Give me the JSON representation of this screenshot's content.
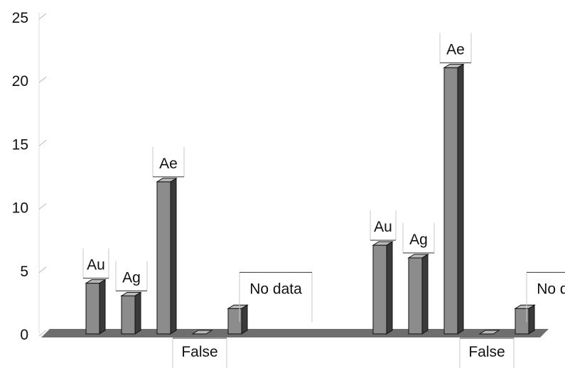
{
  "chart_data": {
    "type": "bar",
    "title": "",
    "xlabel": "",
    "ylabel": "",
    "ylim": [
      0,
      25
    ],
    "yticks": [
      0,
      5,
      10,
      15,
      20,
      25
    ],
    "grid": false,
    "groups": [
      {
        "name": "",
        "bars": [
          {
            "label": "Au",
            "value": 4
          },
          {
            "label": "Ag",
            "value": 3
          },
          {
            "label": "Ae",
            "value": 12
          },
          {
            "label": "False",
            "value": 0
          },
          {
            "label": "No data",
            "value": 2
          }
        ]
      },
      {
        "name": "",
        "bars": [
          {
            "label": "Au",
            "value": 7
          },
          {
            "label": "Ag",
            "value": 6
          },
          {
            "label": "Ae",
            "value": 21
          },
          {
            "label": "False",
            "value": 0
          },
          {
            "label": "No data",
            "value": 2
          }
        ]
      }
    ],
    "colors": {
      "bar_front": "#8c8c8c",
      "bar_side": "#3a3a3a",
      "bar_top": "#b8b8b8",
      "floor": "#6e6e6e",
      "outline": "#111111"
    }
  }
}
